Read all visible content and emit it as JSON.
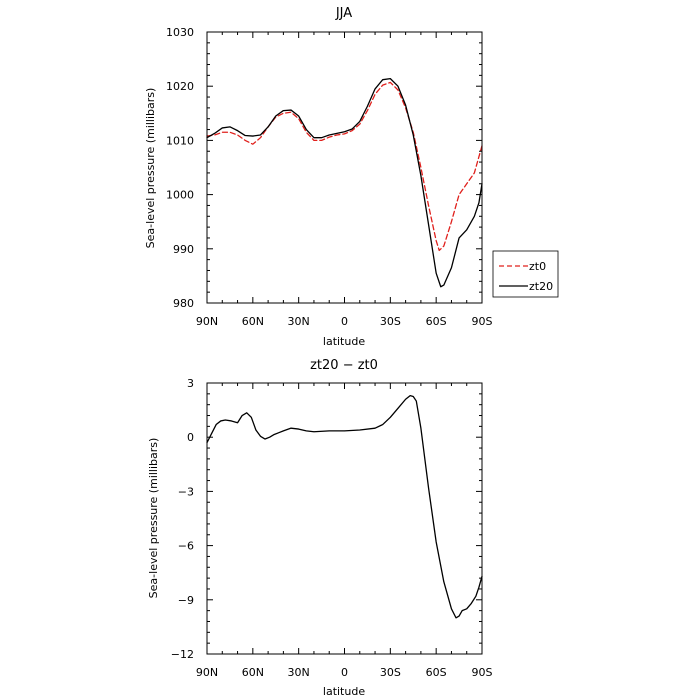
{
  "chart_data": [
    {
      "type": "line",
      "title": "JJA",
      "xlabel": "latitude",
      "ylabel": "Sea-level pressure (millibars)",
      "xlim": [
        90,
        -90
      ],
      "ylim": [
        980,
        1030
      ],
      "x_ticks": [
        90,
        60,
        30,
        0,
        -30,
        -60,
        -90
      ],
      "x_tick_labels": [
        "90N",
        "60N",
        "30N",
        "0",
        "30S",
        "60S",
        "90S"
      ],
      "y_ticks": [
        980,
        990,
        1000,
        1010,
        1020,
        1030
      ],
      "y_tick_labels": [
        "980",
        "990",
        "1000",
        "1010",
        "1020",
        "1030"
      ],
      "grid": false,
      "legend": "outside-right",
      "series": [
        {
          "name": "zt0",
          "color": "#e0201c",
          "dash": "dashed",
          "x": [
            90,
            85,
            80,
            75,
            70,
            65,
            60,
            55,
            50,
            45,
            40,
            35,
            30,
            25,
            20,
            15,
            10,
            5,
            0,
            -5,
            -10,
            -15,
            -20,
            -25,
            -30,
            -35,
            -40,
            -45,
            -50,
            -55,
            -60,
            -62,
            -65,
            -70,
            -75,
            -80,
            -85,
            -90
          ],
          "values": [
            1010.8,
            1011.0,
            1011.5,
            1011.5,
            1011.0,
            1010.0,
            1009.3,
            1010.5,
            1012.5,
            1014.3,
            1015.0,
            1015.2,
            1014.0,
            1011.5,
            1010.0,
            1010.0,
            1010.6,
            1011.0,
            1011.2,
            1011.8,
            1013.0,
            1015.5,
            1018.5,
            1020.2,
            1020.7,
            1019.3,
            1016.0,
            1011.5,
            1005.0,
            998.0,
            991.5,
            989.7,
            990.5,
            995.0,
            1000.0,
            1002.0,
            1004.0,
            1009.0
          ]
        },
        {
          "name": "zt20",
          "color": "#000000",
          "dash": "solid",
          "x": [
            90,
            85,
            80,
            75,
            70,
            65,
            60,
            55,
            50,
            45,
            40,
            35,
            30,
            25,
            20,
            15,
            10,
            5,
            0,
            -5,
            -10,
            -15,
            -20,
            -25,
            -30,
            -35,
            -40,
            -45,
            -50,
            -55,
            -60,
            -63,
            -65,
            -70,
            -75,
            -80,
            -85,
            -88,
            -90
          ],
          "values": [
            1010.5,
            1011.3,
            1012.3,
            1012.5,
            1011.8,
            1010.9,
            1010.8,
            1011.0,
            1012.5,
            1014.5,
            1015.5,
            1015.6,
            1014.5,
            1012.0,
            1010.5,
            1010.5,
            1011.0,
            1011.3,
            1011.6,
            1012.1,
            1013.5,
            1016.3,
            1019.5,
            1021.2,
            1021.4,
            1020.0,
            1016.5,
            1011.0,
            1003.5,
            994.5,
            985.5,
            983.0,
            983.3,
            986.5,
            992.0,
            993.5,
            996.0,
            998.5,
            1002.0
          ]
        }
      ]
    },
    {
      "type": "line",
      "title": "zt20 − zt0",
      "xlabel": "latitude",
      "ylabel": "Sea-level pressure (millibars)",
      "xlim": [
        90,
        -90
      ],
      "ylim": [
        -12,
        3
      ],
      "x_ticks": [
        90,
        60,
        30,
        0,
        -30,
        -60,
        -90
      ],
      "x_tick_labels": [
        "90N",
        "60N",
        "30N",
        "0",
        "30S",
        "60S",
        "90S"
      ],
      "y_ticks": [
        -12,
        -9,
        -6,
        -3,
        0,
        3
      ],
      "y_tick_labels": [
        "−12",
        "−9",
        "−6",
        "−3",
        "0",
        "3"
      ],
      "grid": false,
      "series": [
        {
          "color": "#000000",
          "dash": "solid",
          "x": [
            90,
            87,
            84,
            81,
            78,
            74,
            70,
            67,
            64,
            61,
            58,
            55,
            52,
            49,
            46,
            43,
            40,
            35,
            30,
            25,
            20,
            10,
            0,
            -10,
            -20,
            -25,
            -30,
            -35,
            -40,
            -43,
            -45,
            -47,
            -50,
            -55,
            -60,
            -65,
            -70,
            -73,
            -75,
            -77,
            -80,
            -83,
            -86,
            -88,
            -90
          ],
          "values": [
            -0.3,
            0.2,
            0.7,
            0.9,
            0.95,
            0.9,
            0.8,
            1.2,
            1.35,
            1.1,
            0.4,
            0.05,
            -0.1,
            0.0,
            0.15,
            0.25,
            0.35,
            0.5,
            0.45,
            0.35,
            0.3,
            0.35,
            0.35,
            0.4,
            0.5,
            0.7,
            1.1,
            1.6,
            2.1,
            2.3,
            2.25,
            2.0,
            0.5,
            -2.8,
            -5.8,
            -8.0,
            -9.5,
            -10.0,
            -9.9,
            -9.6,
            -9.5,
            -9.2,
            -8.8,
            -8.3,
            -7.7
          ]
        }
      ]
    }
  ]
}
